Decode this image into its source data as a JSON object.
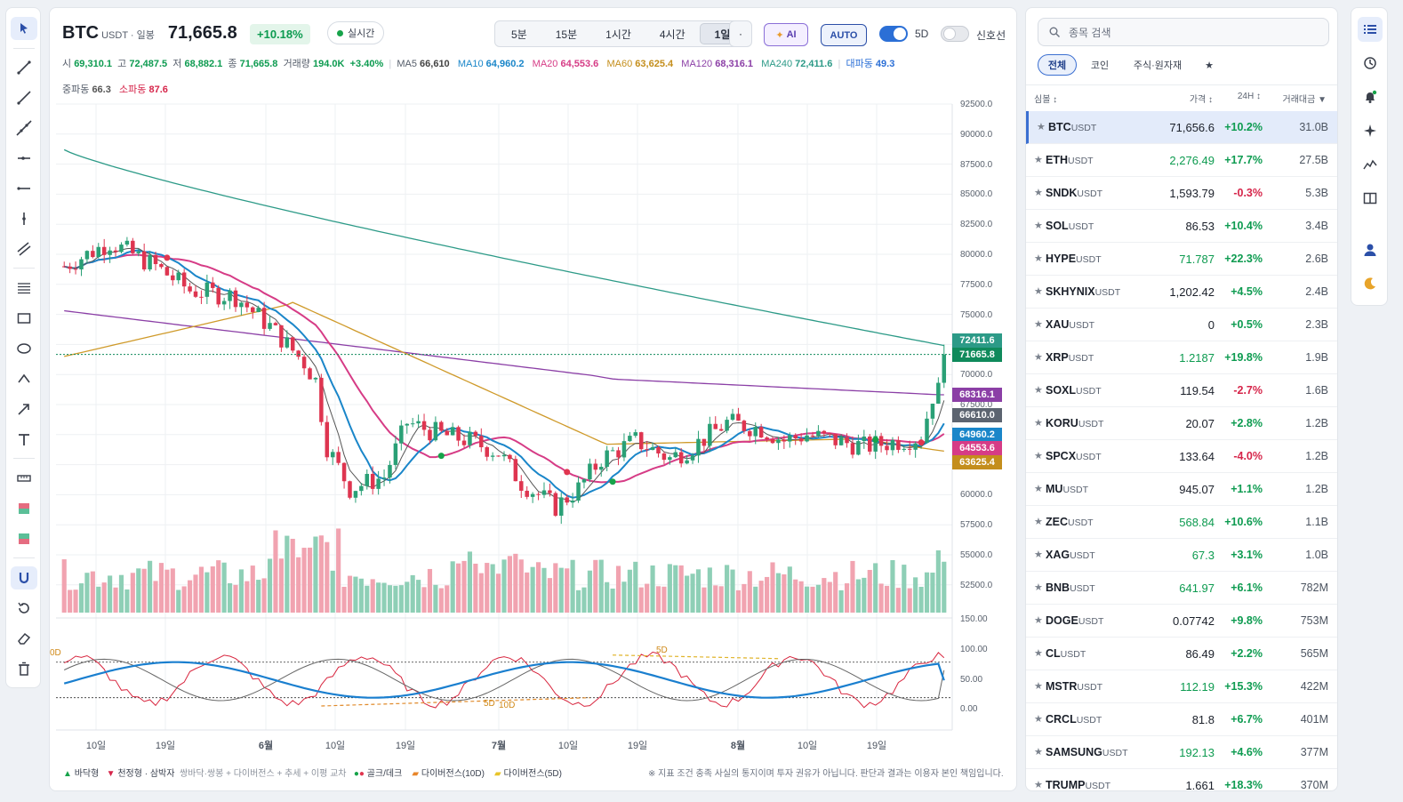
{
  "toolbar": {
    "tools": [
      "cursor",
      "trend-line",
      "ray",
      "extended-line",
      "horizontal-ray",
      "horizontal-line",
      "vertical-line",
      "parallel-channel",
      "fib-levels",
      "rectangle",
      "ellipse",
      "polyline",
      "arrow",
      "text",
      "measure",
      "long-position",
      "short-position",
      "magnet",
      "reset",
      "eraser",
      "trash"
    ]
  },
  "header": {
    "symbol": "BTC",
    "quote": "USDT · 일봉",
    "price": "71,665.8",
    "change": "+10.18%",
    "realtime_label": "실시간",
    "timeframes": [
      "5분",
      "15분",
      "1시간",
      "4시간",
      "1일"
    ],
    "selected_tf": "1일",
    "more": "·",
    "ai_label": "AI",
    "auto_label": "AUTO",
    "toggle_5d_label": "5D",
    "signal_label": "신호선"
  },
  "ohlc": {
    "open_l": "시",
    "open": "69,310.1",
    "high_l": "고",
    "high": "72,487.5",
    "low_l": "저",
    "low": "68,882.1",
    "close_l": "종",
    "close": "71,665.8",
    "vol_l": "거래량",
    "vol": "194.0K",
    "pct": "+3.40%",
    "ma5_l": "MA5",
    "ma5": "66,610",
    "ma10_l": "MA10",
    "ma10": "64,960.2",
    "ma20_l": "MA20",
    "ma20": "64,553.6",
    "ma60_l": "MA60",
    "ma60": "63,625.4",
    "ma120_l": "MA120",
    "ma120": "68,316.1",
    "ma240_l": "MA240",
    "ma240": "72,411.6",
    "big_l": "대파동",
    "big": "49.3",
    "mid_l": "중파동",
    "mid": "66.3",
    "small_l": "소파동",
    "small": "87.6"
  },
  "colors": {
    "up": "#3fae86",
    "down": "#e0364f",
    "ma5": "#555555",
    "ma10": "#1a86c9",
    "ma20": "#d63c86",
    "ma60": "#cf9a2a",
    "ma120": "#8b3fa6",
    "ma240": "#2c9a87"
  },
  "axis": {
    "price_ticks": [
      "92500.0",
      "90000.0",
      "87500.0",
      "85000.0",
      "82500.0",
      "80000.0",
      "77500.0",
      "75000.0",
      "72500.0",
      "70000.0",
      "67500.0",
      "65000.0",
      "62500.0",
      "60000.0",
      "57500.0",
      "55000.0",
      "52500.0"
    ],
    "osc_ticks": [
      "150.00",
      "100.00",
      "50.00",
      "0.00"
    ],
    "x_ticks": [
      "10일",
      "19일",
      "6월",
      "10일",
      "19일",
      "7월",
      "10일",
      "19일",
      "8월",
      "10일",
      "19일"
    ],
    "price_tags": [
      "72411.6",
      "71665.8",
      "68316.1",
      "66610.0",
      "64960.2",
      "64553.6",
      "63625.4"
    ]
  },
  "osc_labels": [
    "0D",
    "5D",
    "5D",
    "10D"
  ],
  "legend": {
    "bottom_type": "바닥형",
    "top_type": "천정형 · 삼박자",
    "top_desc": "쌍바닥·쌍봉 + 다이버전스 + 추세 + 이평 교차",
    "gold_dead": "골크/데크",
    "div10": "다이버전스(10D)",
    "div5": "다이버전스(5D)",
    "disclaimer": "※ 지표 조건 충족 사실의 통지이며 투자 권유가 아닙니다. 판단과 결과는 이용자 본인 책임입니다."
  },
  "chart_data": {
    "type": "candlestick",
    "ylim": [
      50000,
      92500
    ],
    "osc_ylim": [
      0,
      150
    ],
    "last_close": 71665.8,
    "ma_last": {
      "ma5": 66610,
      "ma10": 64960.2,
      "ma20": 64553.6,
      "ma60": 63625.4,
      "ma120": 68316.1,
      "ma240": 72411.6
    }
  },
  "market": {
    "search_placeholder": "종목 검색",
    "filters": [
      "전체",
      "코인",
      "주식·원자재",
      "★"
    ],
    "selected_filter": "전체",
    "headers": {
      "symbol": "심볼 ↕",
      "price": "가격 ↕",
      "chg": "24H ↕",
      "vol": "거래대금 ▼"
    },
    "rows": [
      {
        "sym": "BTC",
        "q": "USDT",
        "price": "71,656.6",
        "chg": "+10.2%",
        "vol": "31.0B",
        "dir": "neu",
        "cdir": "up"
      },
      {
        "sym": "ETH",
        "q": "USDT",
        "price": "2,276.49",
        "chg": "+17.7%",
        "vol": "27.5B",
        "dir": "up",
        "cdir": "up"
      },
      {
        "sym": "SNDK",
        "q": "USDT",
        "price": "1,593.79",
        "chg": "-0.3%",
        "vol": "5.3B",
        "dir": "neu",
        "cdir": "dn"
      },
      {
        "sym": "SOL",
        "q": "USDT",
        "price": "86.53",
        "chg": "+10.4%",
        "vol": "3.4B",
        "dir": "neu",
        "cdir": "up"
      },
      {
        "sym": "HYPE",
        "q": "USDT",
        "price": "71.787",
        "chg": "+22.3%",
        "vol": "2.6B",
        "dir": "up",
        "cdir": "up"
      },
      {
        "sym": "SKHYNIX",
        "q": "USDT",
        "price": "1,202.42",
        "chg": "+4.5%",
        "vol": "2.4B",
        "dir": "neu",
        "cdir": "up"
      },
      {
        "sym": "XAU",
        "q": "USDT",
        "price": "0",
        "chg": "+0.5%",
        "vol": "2.3B",
        "dir": "neu",
        "cdir": "up"
      },
      {
        "sym": "XRP",
        "q": "USDT",
        "price": "1.2187",
        "chg": "+19.8%",
        "vol": "1.9B",
        "dir": "up",
        "cdir": "up"
      },
      {
        "sym": "SOXL",
        "q": "USDT",
        "price": "119.54",
        "chg": "-2.7%",
        "vol": "1.6B",
        "dir": "neu",
        "cdir": "dn"
      },
      {
        "sym": "KORU",
        "q": "USDT",
        "price": "20.07",
        "chg": "+2.8%",
        "vol": "1.2B",
        "dir": "neu",
        "cdir": "up"
      },
      {
        "sym": "SPCX",
        "q": "USDT",
        "price": "133.64",
        "chg": "-4.0%",
        "vol": "1.2B",
        "dir": "neu",
        "cdir": "dn"
      },
      {
        "sym": "MU",
        "q": "USDT",
        "price": "945.07",
        "chg": "+1.1%",
        "vol": "1.2B",
        "dir": "neu",
        "cdir": "up"
      },
      {
        "sym": "ZEC",
        "q": "USDT",
        "price": "568.84",
        "chg": "+10.6%",
        "vol": "1.1B",
        "dir": "up",
        "cdir": "up"
      },
      {
        "sym": "XAG",
        "q": "USDT",
        "price": "67.3",
        "chg": "+3.1%",
        "vol": "1.0B",
        "dir": "up",
        "cdir": "up"
      },
      {
        "sym": "BNB",
        "q": "USDT",
        "price": "641.97",
        "chg": "+6.1%",
        "vol": "782M",
        "dir": "up",
        "cdir": "up"
      },
      {
        "sym": "DOGE",
        "q": "USDT",
        "price": "0.07742",
        "chg": "+9.8%",
        "vol": "753M",
        "dir": "neu",
        "cdir": "up"
      },
      {
        "sym": "CL",
        "q": "USDT",
        "price": "86.49",
        "chg": "+2.2%",
        "vol": "565M",
        "dir": "neu",
        "cdir": "up"
      },
      {
        "sym": "MSTR",
        "q": "USDT",
        "price": "112.19",
        "chg": "+15.3%",
        "vol": "422M",
        "dir": "up",
        "cdir": "up"
      },
      {
        "sym": "CRCL",
        "q": "USDT",
        "price": "81.8",
        "chg": "+6.7%",
        "vol": "401M",
        "dir": "neu",
        "cdir": "up"
      },
      {
        "sym": "SAMSUNG",
        "q": "USDT",
        "price": "192.13",
        "chg": "+4.6%",
        "vol": "377M",
        "dir": "up",
        "cdir": "up"
      },
      {
        "sym": "TRUMP",
        "q": "USDT",
        "price": "1.661",
        "chg": "+18.3%",
        "vol": "370M",
        "dir": "neu",
        "cdir": "up"
      }
    ]
  },
  "rightbar": {
    "icons": [
      "list-icon",
      "history-icon",
      "bell-icon",
      "sparkle-icon",
      "chart-icon",
      "layout-icon",
      "user-icon",
      "moon-icon"
    ]
  }
}
